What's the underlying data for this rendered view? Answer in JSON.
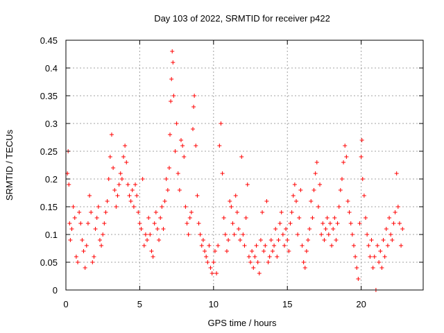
{
  "chart_data": {
    "type": "scatter",
    "title": "Day 103 of 2022, SRMTID for receiver p422",
    "xlabel": "GPS time / hours",
    "ylabel": "SRMTID / TECUs",
    "xlim": [
      0,
      24.2
    ],
    "ylim": [
      0,
      0.45
    ],
    "x_ticks": [
      0,
      5,
      10,
      15,
      20
    ],
    "x_tick_labels": [
      "0",
      "5",
      "10",
      "15",
      "20"
    ],
    "y_ticks": [
      0,
      0.05,
      0.1,
      0.15,
      0.2,
      0.25,
      0.3,
      0.35,
      0.4,
      0.45
    ],
    "y_tick_labels": [
      "0",
      "0.05",
      "0.1",
      "0.15",
      "0.2",
      "0.25",
      "0.3",
      "0.35",
      "0.4",
      "0.45"
    ],
    "grid": true,
    "marker": "+",
    "series": [
      {
        "name": "SRMTID",
        "color": "#ff0000",
        "points": [
          [
            0.1,
            0.21
          ],
          [
            0.15,
            0.25
          ],
          [
            0.2,
            0.19
          ],
          [
            0.25,
            0.12
          ],
          [
            0.3,
            0.09
          ],
          [
            0.4,
            0.11
          ],
          [
            0.5,
            0.15
          ],
          [
            0.6,
            0.13
          ],
          [
            0.7,
            0.06
          ],
          [
            0.8,
            0.05
          ],
          [
            0.9,
            0.14
          ],
          [
            1.0,
            0.12
          ],
          [
            1.1,
            0.09
          ],
          [
            1.2,
            0.07
          ],
          [
            1.3,
            0.04
          ],
          [
            1.4,
            0.08
          ],
          [
            1.5,
            0.12
          ],
          [
            1.6,
            0.17
          ],
          [
            1.7,
            0.14
          ],
          [
            1.8,
            0.05
          ],
          [
            1.9,
            0.06
          ],
          [
            2.0,
            0.11
          ],
          [
            2.1,
            0.13
          ],
          [
            2.2,
            0.15
          ],
          [
            2.3,
            0.09
          ],
          [
            2.4,
            0.08
          ],
          [
            2.5,
            0.1
          ],
          [
            2.6,
            0.12
          ],
          [
            2.7,
            0.14
          ],
          [
            2.8,
            0.16
          ],
          [
            2.9,
            0.2
          ],
          [
            3.0,
            0.24
          ],
          [
            3.1,
            0.28
          ],
          [
            3.2,
            0.22
          ],
          [
            3.3,
            0.18
          ],
          [
            3.4,
            0.15
          ],
          [
            3.5,
            0.17
          ],
          [
            3.6,
            0.19
          ],
          [
            3.7,
            0.21
          ],
          [
            3.8,
            0.2
          ],
          [
            3.9,
            0.24
          ],
          [
            4.0,
            0.26
          ],
          [
            4.1,
            0.23
          ],
          [
            4.2,
            0.19
          ],
          [
            4.3,
            0.17
          ],
          [
            4.4,
            0.16
          ],
          [
            4.5,
            0.18
          ],
          [
            4.6,
            0.15
          ],
          [
            4.7,
            0.19
          ],
          [
            4.8,
            0.17
          ],
          [
            4.9,
            0.14
          ],
          [
            5.0,
            0.12
          ],
          [
            5.1,
            0.11
          ],
          [
            5.2,
            0.2
          ],
          [
            5.3,
            0.08
          ],
          [
            5.4,
            0.1
          ],
          [
            5.5,
            0.09
          ],
          [
            5.6,
            0.13
          ],
          [
            5.7,
            0.1
          ],
          [
            5.8,
            0.07
          ],
          [
            5.9,
            0.06
          ],
          [
            6.0,
            0.12
          ],
          [
            6.1,
            0.14
          ],
          [
            6.2,
            0.11
          ],
          [
            6.3,
            0.09
          ],
          [
            6.4,
            0.13
          ],
          [
            6.5,
            0.15
          ],
          [
            6.6,
            0.11
          ],
          [
            6.7,
            0.16
          ],
          [
            6.8,
            0.2
          ],
          [
            6.9,
            0.18
          ],
          [
            7.0,
            0.22
          ],
          [
            7.05,
            0.28
          ],
          [
            7.1,
            0.34
          ],
          [
            7.15,
            0.38
          ],
          [
            7.2,
            0.43
          ],
          [
            7.25,
            0.41
          ],
          [
            7.3,
            0.35
          ],
          [
            7.4,
            0.25
          ],
          [
            7.5,
            0.3
          ],
          [
            7.6,
            0.21
          ],
          [
            7.7,
            0.18
          ],
          [
            7.8,
            0.27
          ],
          [
            7.9,
            0.26
          ],
          [
            8.0,
            0.24
          ],
          [
            8.1,
            0.15
          ],
          [
            8.2,
            0.12
          ],
          [
            8.3,
            0.1
          ],
          [
            8.4,
            0.13
          ],
          [
            8.5,
            0.14
          ],
          [
            8.6,
            0.29
          ],
          [
            8.65,
            0.33
          ],
          [
            8.7,
            0.35
          ],
          [
            8.8,
            0.26
          ],
          [
            8.9,
            0.17
          ],
          [
            9.0,
            0.12
          ],
          [
            9.1,
            0.1
          ],
          [
            9.2,
            0.08
          ],
          [
            9.3,
            0.09
          ],
          [
            9.4,
            0.07
          ],
          [
            9.5,
            0.06
          ],
          [
            9.6,
            0.05
          ],
          [
            9.7,
            0.08
          ],
          [
            9.8,
            0.04
          ],
          [
            9.9,
            0.03
          ],
          [
            10.0,
            0.05
          ],
          [
            10.1,
            0.07
          ],
          [
            10.2,
            0.03
          ],
          [
            10.3,
            0.08
          ],
          [
            10.4,
            0.26
          ],
          [
            10.5,
            0.3
          ],
          [
            10.6,
            0.21
          ],
          [
            10.7,
            0.13
          ],
          [
            10.8,
            0.1
          ],
          [
            10.9,
            0.07
          ],
          [
            11.0,
            0.09
          ],
          [
            11.1,
            0.16
          ],
          [
            11.2,
            0.15
          ],
          [
            11.3,
            0.12
          ],
          [
            11.4,
            0.1
          ],
          [
            11.5,
            0.17
          ],
          [
            11.6,
            0.14
          ],
          [
            11.7,
            0.11
          ],
          [
            11.8,
            0.09
          ],
          [
            11.9,
            0.24
          ],
          [
            12.0,
            0.1
          ],
          [
            12.1,
            0.08
          ],
          [
            12.2,
            0.13
          ],
          [
            12.3,
            0.19
          ],
          [
            12.4,
            0.06
          ],
          [
            12.5,
            0.05
          ],
          [
            12.6,
            0.07
          ],
          [
            12.7,
            0.04
          ],
          [
            12.8,
            0.06
          ],
          [
            12.9,
            0.08
          ],
          [
            13.0,
            0.05
          ],
          [
            13.1,
            0.03
          ],
          [
            13.2,
            0.09
          ],
          [
            13.3,
            0.14
          ],
          [
            13.4,
            0.07
          ],
          [
            13.5,
            0.08
          ],
          [
            13.6,
            0.16
          ],
          [
            13.7,
            0.05
          ],
          [
            13.8,
            0.06
          ],
          [
            13.9,
            0.09
          ],
          [
            14.0,
            0.07
          ],
          [
            14.1,
            0.08
          ],
          [
            14.2,
            0.11
          ],
          [
            14.3,
            0.06
          ],
          [
            14.4,
            0.09
          ],
          [
            14.5,
            0.12
          ],
          [
            14.6,
            0.14
          ],
          [
            14.7,
            0.1
          ],
          [
            14.8,
            0.08
          ],
          [
            14.9,
            0.11
          ],
          [
            15.0,
            0.09
          ],
          [
            15.1,
            0.07
          ],
          [
            15.2,
            0.12
          ],
          [
            15.3,
            0.14
          ],
          [
            15.4,
            0.17
          ],
          [
            15.5,
            0.19
          ],
          [
            15.6,
            0.16
          ],
          [
            15.7,
            0.1
          ],
          [
            15.8,
            0.13
          ],
          [
            15.9,
            0.18
          ],
          [
            16.0,
            0.08
          ],
          [
            16.1,
            0.05
          ],
          [
            16.2,
            0.04
          ],
          [
            16.3,
            0.07
          ],
          [
            16.4,
            0.09
          ],
          [
            16.5,
            0.11
          ],
          [
            16.6,
            0.16
          ],
          [
            16.7,
            0.13
          ],
          [
            16.8,
            0.18
          ],
          [
            16.9,
            0.21
          ],
          [
            17.0,
            0.23
          ],
          [
            17.1,
            0.15
          ],
          [
            17.2,
            0.19
          ],
          [
            17.3,
            0.1
          ],
          [
            17.4,
            0.12
          ],
          [
            17.5,
            0.09
          ],
          [
            17.6,
            0.11
          ],
          [
            17.7,
            0.13
          ],
          [
            17.8,
            0.1
          ],
          [
            17.9,
            0.12
          ],
          [
            18.0,
            0.08
          ],
          [
            18.1,
            0.11
          ],
          [
            18.2,
            0.13
          ],
          [
            18.3,
            0.09
          ],
          [
            18.4,
            0.12
          ],
          [
            18.5,
            0.15
          ],
          [
            18.6,
            0.18
          ],
          [
            18.7,
            0.2
          ],
          [
            18.8,
            0.23
          ],
          [
            18.9,
            0.26
          ],
          [
            19.0,
            0.24
          ],
          [
            19.1,
            0.16
          ],
          [
            19.2,
            0.14
          ],
          [
            19.3,
            0.12
          ],
          [
            19.4,
            0.1
          ],
          [
            19.5,
            0.08
          ],
          [
            19.6,
            0.06
          ],
          [
            19.7,
            0.04
          ],
          [
            19.8,
            0.02
          ],
          [
            19.9,
            0.12
          ],
          [
            20.0,
            0.24
          ],
          [
            20.05,
            0.27
          ],
          [
            20.1,
            0.2
          ],
          [
            20.2,
            0.17
          ],
          [
            20.3,
            0.13
          ],
          [
            20.4,
            0.1
          ],
          [
            20.5,
            0.08
          ],
          [
            20.6,
            0.06
          ],
          [
            20.7,
            0.09
          ],
          [
            20.8,
            0.04
          ],
          [
            20.9,
            0.06
          ],
          [
            21.0,
            0.0
          ],
          [
            21.1,
            0.08
          ],
          [
            21.2,
            0.05
          ],
          [
            21.3,
            0.07
          ],
          [
            21.4,
            0.04
          ],
          [
            21.5,
            0.09
          ],
          [
            21.6,
            0.06
          ],
          [
            21.7,
            0.11
          ],
          [
            21.8,
            0.08
          ],
          [
            21.9,
            0.13
          ],
          [
            22.0,
            0.1
          ],
          [
            22.1,
            0.09
          ],
          [
            22.2,
            0.12
          ],
          [
            22.3,
            0.14
          ],
          [
            22.4,
            0.21
          ],
          [
            22.5,
            0.15
          ],
          [
            22.6,
            0.12
          ],
          [
            22.7,
            0.08
          ],
          [
            22.8,
            0.11
          ]
        ]
      }
    ]
  }
}
